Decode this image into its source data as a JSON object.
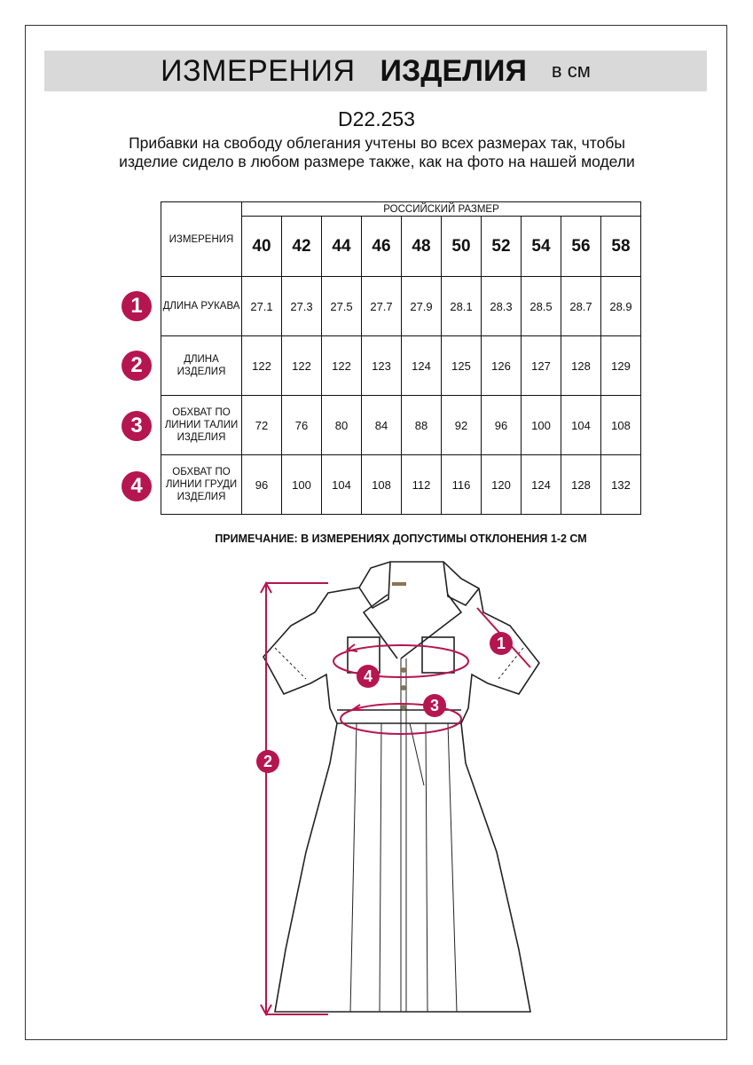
{
  "header": {
    "title_light": "ИЗМЕРЕНИЯ",
    "title_bold": "ИЗДЕЛИЯ",
    "unit": "в см"
  },
  "product_code": "D22.253",
  "description": "Прибавки на свободу облегания учтены во всех размерах так, чтобы изделие сидело в любом размере также, как на фото на нашей модели",
  "table": {
    "measure_header": "ИЗМЕРЕНИЯ",
    "size_group_header": "РОССИЙСКИЙ РАЗМЕР",
    "sizes": [
      "40",
      "42",
      "44",
      "46",
      "48",
      "50",
      "52",
      "54",
      "56",
      "58"
    ],
    "rows": [
      {
        "num": "1",
        "label": "ДЛИНА РУКАВА",
        "values": [
          "27.1",
          "27.3",
          "27.5",
          "27.7",
          "27.9",
          "28.1",
          "28.3",
          "28.5",
          "28.7",
          "28.9"
        ]
      },
      {
        "num": "2",
        "label": "ДЛИНА ИЗДЕЛИЯ",
        "values": [
          "122",
          "122",
          "122",
          "123",
          "124",
          "125",
          "126",
          "127",
          "128",
          "129"
        ]
      },
      {
        "num": "3",
        "label": "ОБХВАТ ПО ЛИНИИ ТАЛИИ ИЗДЕЛИЯ",
        "values": [
          "72",
          "76",
          "80",
          "84",
          "88",
          "92",
          "96",
          "100",
          "104",
          "108"
        ]
      },
      {
        "num": "4",
        "label": "ОБХВАТ ПО ЛИНИИ ГРУДИ ИЗДЕЛИЯ",
        "values": [
          "96",
          "100",
          "104",
          "108",
          "112",
          "116",
          "120",
          "124",
          "128",
          "132"
        ]
      }
    ]
  },
  "note": "ПРИМЕЧАНИЕ: В ИЗМЕРЕНИЯХ ДОПУСТИМЫ ОТКЛОНЕНИЯ 1-2 СМ",
  "diagram_markers": [
    "1",
    "2",
    "3",
    "4"
  ],
  "colors": {
    "accent": "#b5164f",
    "band": "#d9d9d9"
  }
}
